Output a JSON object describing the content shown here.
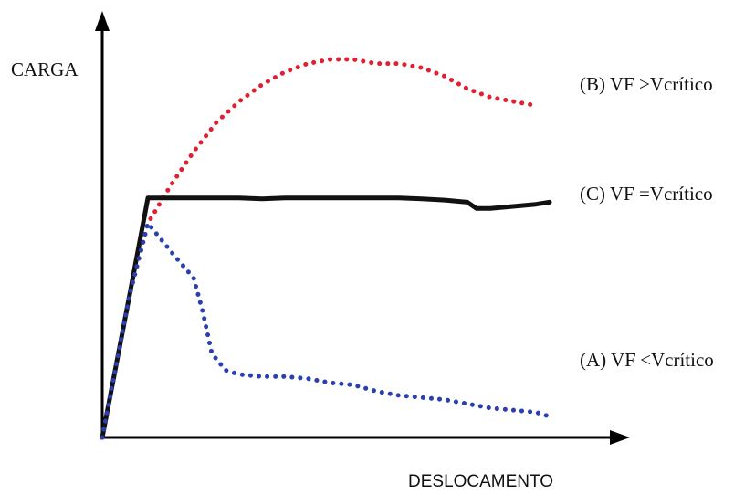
{
  "chart_data": {
    "type": "line",
    "title": "",
    "ylabel": "CARGA",
    "xlabel": "DESLOCAMENTO",
    "grid": false,
    "legend": "inline-right",
    "series": [
      {
        "name": "(B) VF >Vcrítico",
        "color": "#e02030",
        "style": "dotted",
        "x": [
          0,
          15,
          30,
          50,
          75,
          100,
          125,
          150,
          175,
          200,
          225,
          250,
          275,
          300,
          325,
          350,
          375,
          400,
          425,
          450,
          475
        ],
        "y": [
          0,
          17,
          34,
          51,
          60,
          68,
          75,
          80,
          84,
          87,
          89,
          90,
          90,
          89,
          89,
          88,
          86,
          83,
          81,
          80,
          79
        ]
      },
      {
        "name": "(C) VF =Vcrítico",
        "color": "#111111",
        "style": "solid",
        "x": [
          0,
          15,
          30,
          50,
          75,
          100,
          125,
          150,
          175,
          200,
          225,
          250,
          275,
          300,
          325,
          350,
          375,
          400,
          410,
          425,
          450,
          475,
          490
        ],
        "y": [
          0,
          17,
          34,
          57,
          57,
          57,
          57,
          57,
          56.8,
          57,
          57,
          57,
          57,
          57,
          57,
          56.8,
          56.5,
          56,
          54.5,
          54.5,
          55,
          55.5,
          56
        ]
      },
      {
        "name": "(A) VF <Vcrítico",
        "color": "#2a3fb0",
        "style": "dotted",
        "x": [
          0,
          15,
          30,
          50,
          80,
          100,
          110,
          120,
          135,
          150,
          175,
          200,
          225,
          250,
          275,
          300,
          325,
          350,
          375,
          400,
          425,
          450,
          475,
          490
        ],
        "y": [
          0,
          17,
          34,
          51,
          43,
          38,
          30,
          20,
          16,
          15,
          14.5,
          14.5,
          14,
          13,
          12.5,
          11,
          10,
          9.5,
          9,
          8,
          7,
          6.5,
          6,
          5
        ]
      }
    ]
  }
}
